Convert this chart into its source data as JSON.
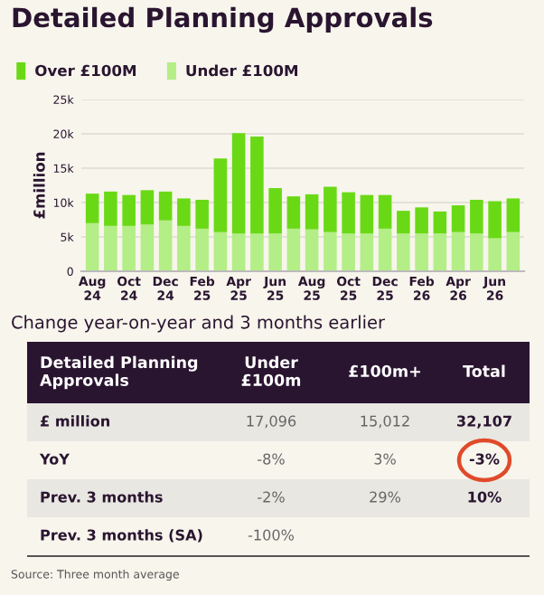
{
  "chart_data": {
    "type": "bar",
    "stacked": true,
    "title": "Detailed Planning Approvals",
    "ylabel": "£million",
    "categories": [
      "Aug\n24",
      null,
      "Oct\n24",
      null,
      "Dec\n24",
      null,
      "Feb\n25",
      null,
      "Apr\n25",
      null,
      "Jun\n25",
      null,
      "Aug\n25",
      null,
      "Oct\n25",
      null,
      "Dec\n25",
      null,
      "Feb\n26",
      null,
      "Apr\n26",
      null,
      "Jun\n26",
      null
    ],
    "series": [
      {
        "name": "Under £100M",
        "color": "#b3ee86",
        "values": [
          7000,
          6600,
          6600,
          6800,
          7400,
          6600,
          6200,
          5700,
          5500,
          5500,
          5500,
          6200,
          6100,
          5700,
          5500,
          5500,
          6200,
          5500,
          5500,
          5500,
          5700,
          5500,
          4800,
          5700
        ]
      },
      {
        "name": "Over £100M",
        "color": "#6ad915",
        "values": [
          4300,
          5000,
          4500,
          5000,
          4200,
          4000,
          4200,
          10700,
          14600,
          14100,
          6600,
          4700,
          5100,
          6600,
          6000,
          5600,
          4900,
          3300,
          3800,
          3200,
          3900,
          4900,
          5400,
          4900
        ]
      }
    ],
    "ylim": [
      0,
      25000
    ],
    "yticks": [
      0,
      {
        "value": 5000,
        "label": "5k"
      },
      {
        "value": 10000,
        "label": "10k"
      },
      {
        "value": 15000,
        "label": "15k"
      },
      {
        "value": 20000,
        "label": "20k"
      },
      {
        "value": 25000,
        "label": "25k"
      }
    ],
    "grid": "y",
    "legend": "top left",
    "annotations": [
      "Change year-on-year and 3 months earlier",
      "Detailed Planning\nApprovals",
      "Under\n£100m",
      "£100m+",
      "Total",
      "£ million",
      "17,096",
      "15,012",
      "32,107",
      "YoY",
      "-8%",
      "3%",
      "-3%",
      "Prev. 3 months",
      "-2%",
      "29%",
      "10%",
      "Prev. 3 months (SA)",
      "-100%",
      "Source: Three month average"
    ]
  }
}
